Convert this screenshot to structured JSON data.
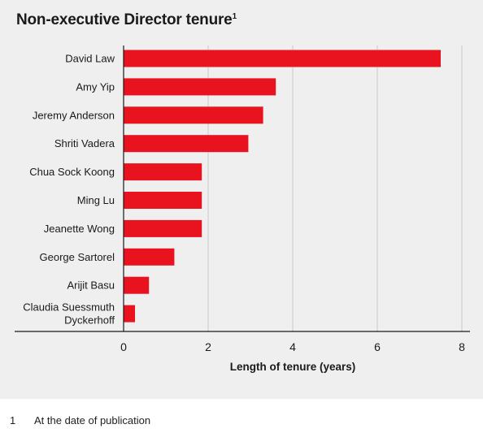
{
  "title": "Non-executive Director tenure",
  "title_note": "1",
  "footnote": {
    "marker": "1",
    "text": "At the date of publication"
  },
  "chart_data": {
    "type": "bar",
    "orientation": "horizontal",
    "title": "Non-executive Director tenure",
    "xlabel": "Length of tenure (years)",
    "ylabel": "",
    "xlim": [
      0,
      8
    ],
    "xticks": [
      0,
      2,
      4,
      6,
      8
    ],
    "grid": true,
    "bar_color": "#e8131f",
    "categories": [
      "David Law",
      "Amy Yip",
      "Jeremy Anderson",
      "Shriti Vadera",
      "Chua Sock Koong",
      "Ming Lu",
      "Jeanette Wong",
      "George Sartorel",
      "Arijit Basu",
      [
        "Claudia Suessmuth",
        "Dyckerhoff"
      ]
    ],
    "values": [
      7.5,
      3.6,
      3.3,
      2.95,
      1.85,
      1.85,
      1.85,
      1.2,
      0.6,
      0.27
    ]
  }
}
